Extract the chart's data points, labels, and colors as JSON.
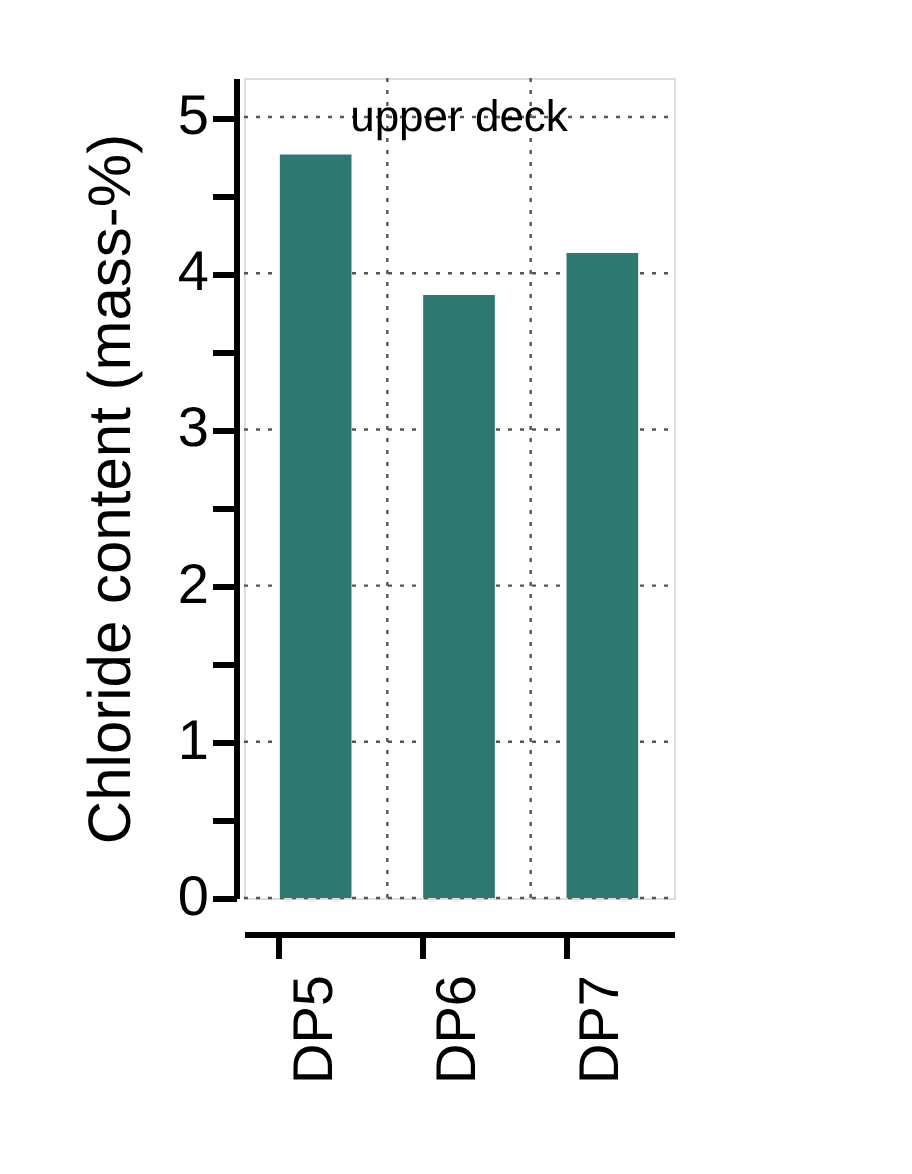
{
  "chart_data": {
    "type": "bar",
    "categories": [
      "DP5",
      "DP6",
      "DP7"
    ],
    "series": [
      {
        "color": "#2e7872",
        "values": [
          4.76,
          3.86,
          4.13
        ]
      }
    ],
    "ylabel": "Chloride content (mass-%)",
    "ylim": [
      0,
      5.25
    ],
    "yticks": [
      0,
      {
        "value": 0.5,
        "label": null
      },
      1,
      {
        "value": 1.5,
        "label": null
      },
      2,
      {
        "value": 2.5,
        "label": null
      },
      3,
      {
        "value": 3.5,
        "label": null
      },
      4,
      {
        "value": 4.5,
        "label": null
      },
      5
    ],
    "annotations": [
      "upper deck"
    ],
    "grid": true
  }
}
